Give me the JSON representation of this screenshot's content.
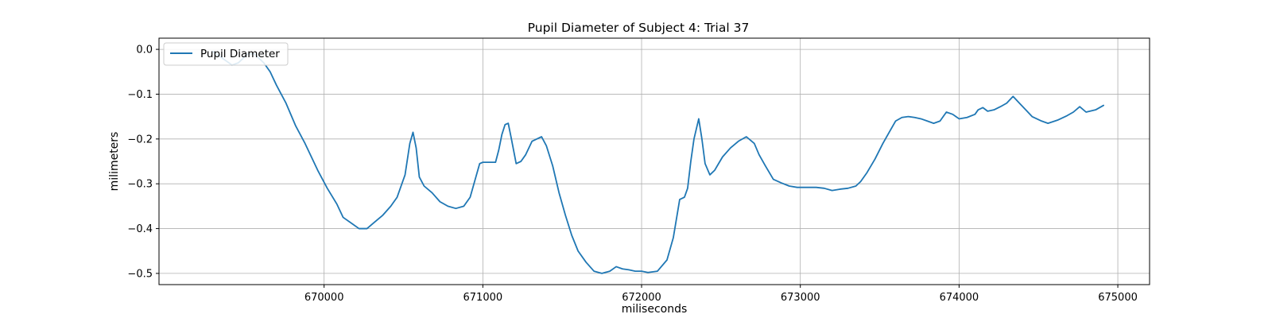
{
  "chart_data": {
    "type": "line",
    "title": "Pupil Diameter of Subject 4: Trial 37",
    "xlabel": "miliseconds",
    "ylabel": "milimeters",
    "xlim": [
      668960,
      675200
    ],
    "ylim": [
      -0.525,
      0.025
    ],
    "x_ticks": [
      670000,
      671000,
      672000,
      673000,
      674000,
      675000
    ],
    "y_ticks": [
      0.0,
      -0.1,
      -0.2,
      -0.3,
      -0.4,
      -0.5
    ],
    "y_tick_labels": [
      "0.0",
      "−0.1",
      "−0.2",
      "−0.3",
      "−0.4",
      "−0.5"
    ],
    "grid": true,
    "legend": {
      "position": "top-left",
      "entries": [
        "Pupil Diameter"
      ]
    },
    "series": [
      {
        "name": "Pupil Diameter",
        "color": "#1f77b4",
        "x": [
          669300,
          669360,
          669420,
          669460,
          669520,
          669560,
          669620,
          669660,
          669700,
          669760,
          669820,
          669880,
          669920,
          669960,
          670020,
          670080,
          670120,
          670180,
          670220,
          670270,
          670320,
          670370,
          670420,
          670460,
          670510,
          670540,
          670560,
          670580,
          670600,
          670630,
          670680,
          670730,
          670780,
          670830,
          670880,
          670920,
          670960,
          670980,
          671000,
          671080,
          671100,
          671120,
          671140,
          671160,
          671180,
          671210,
          671240,
          671270,
          671310,
          671340,
          671370,
          671400,
          671440,
          671480,
          671520,
          671560,
          671600,
          671650,
          671700,
          671750,
          671800,
          671840,
          671880,
          671920,
          671960,
          672000,
          672040,
          672100,
          672160,
          672200,
          672240,
          672270,
          672290,
          672310,
          672330,
          672360,
          672380,
          672400,
          672430,
          672460,
          672480,
          672510,
          672560,
          672610,
          672660,
          672710,
          672740,
          672780,
          672830,
          672880,
          672930,
          672980,
          673050,
          673100,
          673150,
          673200,
          673250,
          673300,
          673350,
          673380,
          673420,
          673470,
          673520,
          673560,
          673600,
          673640,
          673680,
          673720,
          673760,
          673800,
          673840,
          673880,
          673920,
          673960,
          673980,
          674000,
          674050,
          674100,
          674120,
          674150,
          674180,
          674220,
          674260,
          674300,
          674340,
          674380,
          674420,
          674460,
          674520,
          674560,
          674620,
          674680,
          674720,
          674760,
          674800,
          674860,
          674910
        ],
        "y": [
          -0.005,
          -0.02,
          -0.035,
          -0.03,
          -0.01,
          -0.01,
          -0.03,
          -0.05,
          -0.08,
          -0.12,
          -0.17,
          -0.21,
          -0.24,
          -0.27,
          -0.31,
          -0.345,
          -0.375,
          -0.39,
          -0.4,
          -0.4,
          -0.385,
          -0.37,
          -0.35,
          -0.33,
          -0.28,
          -0.21,
          -0.185,
          -0.22,
          -0.285,
          -0.305,
          -0.32,
          -0.34,
          -0.35,
          -0.355,
          -0.35,
          -0.33,
          -0.28,
          -0.255,
          -0.252,
          -0.252,
          -0.225,
          -0.19,
          -0.168,
          -0.165,
          -0.2,
          -0.255,
          -0.25,
          -0.235,
          -0.205,
          -0.2,
          -0.195,
          -0.215,
          -0.26,
          -0.32,
          -0.37,
          -0.415,
          -0.45,
          -0.475,
          -0.495,
          -0.5,
          -0.495,
          -0.485,
          -0.49,
          -0.492,
          -0.495,
          -0.495,
          -0.498,
          -0.495,
          -0.47,
          -0.42,
          -0.335,
          -0.33,
          -0.31,
          -0.25,
          -0.2,
          -0.155,
          -0.2,
          -0.255,
          -0.28,
          -0.27,
          -0.258,
          -0.24,
          -0.22,
          -0.205,
          -0.195,
          -0.21,
          -0.235,
          -0.26,
          -0.29,
          -0.298,
          -0.305,
          -0.308,
          -0.308,
          -0.308,
          -0.31,
          -0.315,
          -0.312,
          -0.31,
          -0.305,
          -0.295,
          -0.275,
          -0.245,
          -0.21,
          -0.185,
          -0.16,
          -0.152,
          -0.15,
          -0.152,
          -0.155,
          -0.16,
          -0.165,
          -0.16,
          -0.14,
          -0.145,
          -0.15,
          -0.155,
          -0.152,
          -0.145,
          -0.135,
          -0.13,
          -0.138,
          -0.135,
          -0.128,
          -0.12,
          -0.105,
          -0.12,
          -0.135,
          -0.15,
          -0.16,
          -0.165,
          -0.158,
          -0.148,
          -0.14,
          -0.128,
          -0.14,
          -0.135,
          -0.125
        ]
      }
    ]
  }
}
